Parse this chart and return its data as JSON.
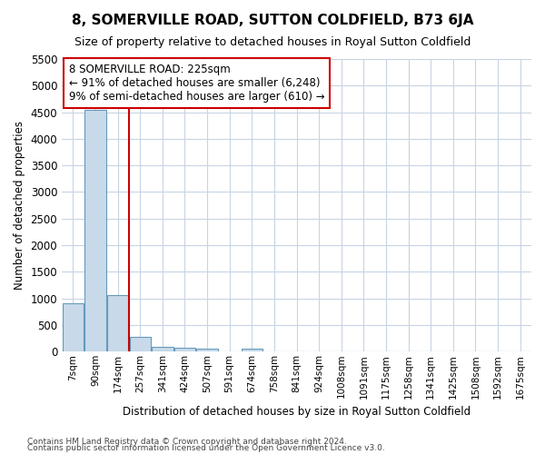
{
  "title": "8, SOMERVILLE ROAD, SUTTON COLDFIELD, B73 6JA",
  "subtitle": "Size of property relative to detached houses in Royal Sutton Coldfield",
  "xlabel": "Distribution of detached houses by size in Royal Sutton Coldfield",
  "ylabel": "Number of detached properties",
  "footnote1": "Contains HM Land Registry data © Crown copyright and database right 2024.",
  "footnote2": "Contains public sector information licensed under the Open Government Licence v3.0.",
  "annotation_title": "8 SOMERVILLE ROAD: 225sqm",
  "annotation_line2": "← 91% of detached houses are smaller (6,248)",
  "annotation_line3": "9% of semi-detached houses are larger (610) →",
  "categories": [
    "7sqm",
    "90sqm",
    "174sqm",
    "257sqm",
    "341sqm",
    "424sqm",
    "507sqm",
    "591sqm",
    "674sqm",
    "758sqm",
    "841sqm",
    "924sqm",
    "1008sqm",
    "1091sqm",
    "1175sqm",
    "1258sqm",
    "1341sqm",
    "1425sqm",
    "1508sqm",
    "1592sqm",
    "1675sqm"
  ],
  "values": [
    900,
    4550,
    1060,
    275,
    90,
    75,
    50,
    0,
    60,
    0,
    0,
    0,
    0,
    0,
    0,
    0,
    0,
    0,
    0,
    0,
    0
  ],
  "bar_color": "#c8daea",
  "bar_edge_color": "#6699bb",
  "vline_x": 2.5,
  "vline_color": "#cc0000",
  "ylim": [
    0,
    5500
  ],
  "yticks": [
    0,
    500,
    1000,
    1500,
    2000,
    2500,
    3000,
    3500,
    4000,
    4500,
    5000,
    5500
  ],
  "grid_color": "#c8d4e4",
  "bg_color": "#ffffff",
  "plot_bg_color": "#ffffff",
  "title_fontsize": 11,
  "subtitle_fontsize": 9
}
